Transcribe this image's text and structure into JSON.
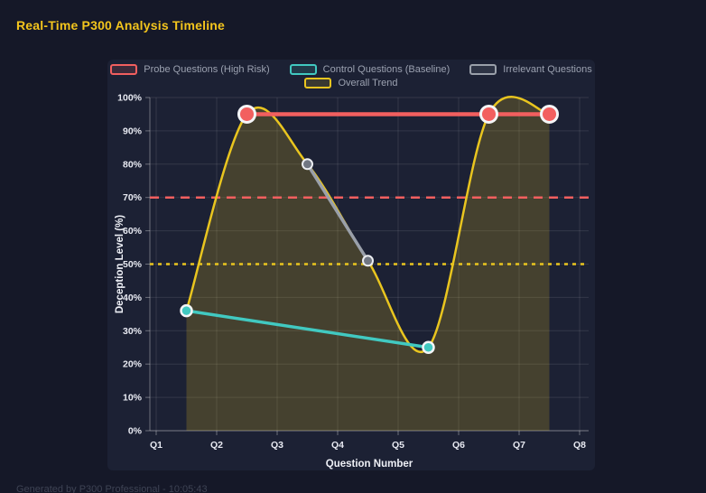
{
  "page": {
    "title": "Real-Time P300 Analysis Timeline",
    "footer": "Generated by P300 Professional - 10:05:43"
  },
  "chart_data": {
    "type": "line",
    "xlabel": "Question Number",
    "ylabel": "Deception Level (%)",
    "x_ticks": [
      "Q1",
      "Q2",
      "Q3",
      "Q4",
      "Q5",
      "Q6",
      "Q7",
      "Q8"
    ],
    "y_tick_labels": [
      "0%",
      "10%",
      "20%",
      "30%",
      "40%",
      "50%",
      "60%",
      "70%",
      "80%",
      "90%",
      "100%"
    ],
    "xlim": [
      1,
      8
    ],
    "ylim": [
      0,
      100
    ],
    "grid": true,
    "legend_position": "top",
    "series": [
      {
        "name": "Probe Questions (High Risk)",
        "color": "#f25f5f",
        "marker_fill": "#f25f5f",
        "marker_ring": "#f4f5f7",
        "points": [
          [
            2.5,
            95
          ],
          [
            6.5,
            95
          ],
          [
            7.5,
            95
          ]
        ],
        "line_width": 4.5,
        "marker_r": 9,
        "marker_stroke": 3,
        "smooth": false
      },
      {
        "name": "Control Questions (Baseline)",
        "color": "#41c9c1",
        "marker_fill": "#41c9c1",
        "marker_ring": "#f4f5f7",
        "points": [
          [
            1.5,
            36
          ],
          [
            5.5,
            25
          ]
        ],
        "line_width": 3.5,
        "marker_r": 6,
        "marker_stroke": 2.5,
        "smooth": false
      },
      {
        "name": "Irrelevant Questions",
        "color": "#9aa0aa",
        "marker_fill": "#707682",
        "marker_ring": "#eceef2",
        "points": [
          [
            3.5,
            80
          ],
          [
            4.5,
            51
          ]
        ],
        "line_width": 3.5,
        "marker_r": 5.5,
        "marker_stroke": 2,
        "smooth": false
      },
      {
        "name": "Overall Trend",
        "color": "#e9c51f",
        "points": [
          [
            1.5,
            36
          ],
          [
            2.5,
            95
          ],
          [
            3.5,
            80
          ],
          [
            4.5,
            51
          ],
          [
            5.5,
            25
          ],
          [
            6.5,
            95
          ],
          [
            7.5,
            95
          ]
        ],
        "line_width": 2.5,
        "marker_r": 0,
        "smooth": true,
        "area_fill": "rgba(233,197,31,0.20)"
      }
    ],
    "thresholds": [
      {
        "value": 70,
        "color": "#f25f5f",
        "dash": "10 7",
        "width": 2.5
      },
      {
        "value": 50,
        "color": "#e9c51f",
        "dash": "4 5",
        "width": 2.5
      }
    ]
  }
}
